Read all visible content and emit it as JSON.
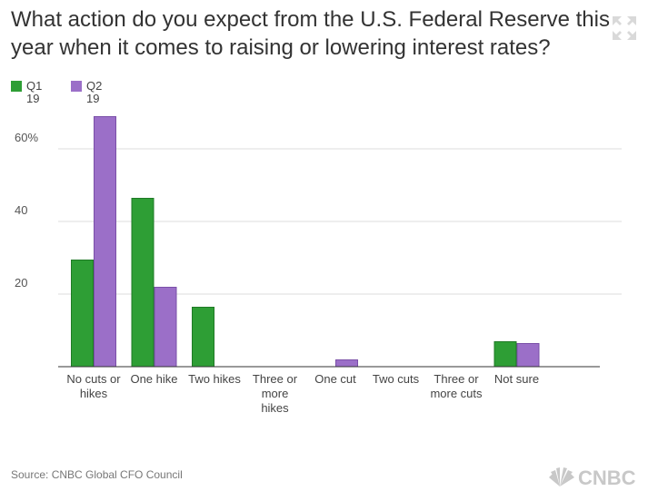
{
  "title": "What action do you expect from the U.S. Federal Reserve this year when it comes to raising or lowering interest rates?",
  "source": "Source: CNBC Global CFO Council",
  "logo_text": "CNBC",
  "icons": {
    "expand": "expand-icon",
    "logo": "cnbc-peacock-logo"
  },
  "chart_data": {
    "type": "bar",
    "categories": [
      "No cuts or hikes",
      "One hike",
      "Two hikes",
      "Three or more hikes",
      "One cut",
      "Two cuts",
      "Three or more cuts",
      "Not sure"
    ],
    "category_lines": [
      [
        "No cuts or",
        "hikes"
      ],
      [
        "One hike"
      ],
      [
        "Two hikes"
      ],
      [
        "Three or",
        "more",
        "hikes"
      ],
      [
        "One cut"
      ],
      [
        "Two cuts"
      ],
      [
        "Three or",
        "more cuts"
      ],
      [
        "Not sure"
      ]
    ],
    "series": [
      {
        "name": "Q1 19",
        "name_lines": [
          "Q1",
          "19"
        ],
        "color": "#2e9e35",
        "stroke": "#1f7a25",
        "values": [
          29.5,
          46.5,
          16.5,
          0,
          0,
          0,
          0,
          7
        ]
      },
      {
        "name": "Q2 19",
        "name_lines": [
          "Q2",
          "19"
        ],
        "color": "#9b6fc8",
        "stroke": "#7a4fa8",
        "values": [
          69,
          22,
          0,
          0,
          2,
          0,
          0,
          6.5
        ]
      }
    ],
    "y_ticks": [
      {
        "value": 60,
        "label": "60%"
      },
      {
        "value": 40,
        "label": "40"
      },
      {
        "value": 20,
        "label": "20"
      }
    ],
    "ylim": [
      0,
      70
    ],
    "grid": true,
    "legend": "top-left"
  }
}
